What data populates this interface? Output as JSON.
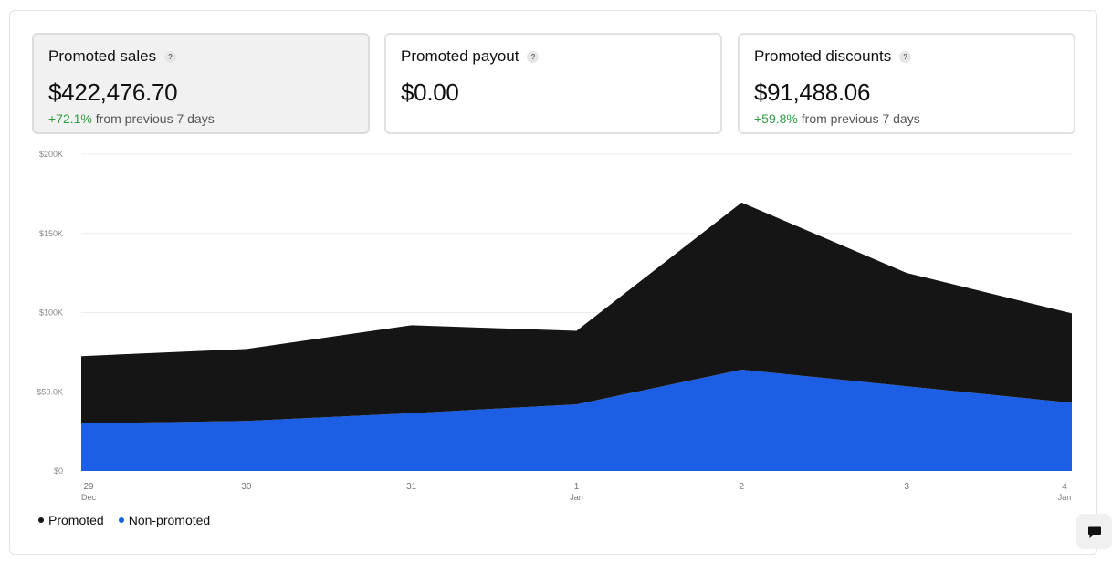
{
  "cards": [
    {
      "title": "Promoted sales",
      "value": "$422,476.70",
      "change_pct": "+72.1%",
      "change_text": "from previous 7 days",
      "active": true
    },
    {
      "title": "Promoted payout",
      "value": "$0.00",
      "change_pct": "",
      "change_text": "",
      "active": false
    },
    {
      "title": "Promoted discounts",
      "value": "$91,488.06",
      "change_pct": "+59.8%",
      "change_text": "from previous 7 days",
      "active": false
    }
  ],
  "help_icon_glyph": "?",
  "chart_data": {
    "type": "area",
    "stacked": true,
    "categories": [
      "29",
      "30",
      "31",
      "1",
      "2",
      "3",
      "4"
    ],
    "category_sublabels": [
      "Dec",
      "",
      "",
      "Jan",
      "",
      "",
      "Jan"
    ],
    "ylim": [
      0,
      200000
    ],
    "y_ticks": [
      0,
      50000,
      100000,
      150000,
      200000
    ],
    "y_tick_labels": [
      "$0",
      "$50.0K",
      "$100K",
      "$150K",
      "$200K"
    ],
    "grid": true,
    "legend_position": "bottom-left",
    "series": [
      {
        "name": "Non-promoted",
        "color": "#1c5fe5",
        "values": [
          30000,
          31500,
          36500,
          42000,
          64000,
          53500,
          43000
        ]
      },
      {
        "name": "Promoted",
        "color": "#151515",
        "values": [
          42500,
          45500,
          55500,
          46500,
          105500,
          71500,
          56500
        ]
      }
    ]
  },
  "legend": [
    {
      "label": "Promoted",
      "color": "#151515"
    },
    {
      "label": "Non-promoted",
      "color": "#1c5fe5"
    }
  ]
}
